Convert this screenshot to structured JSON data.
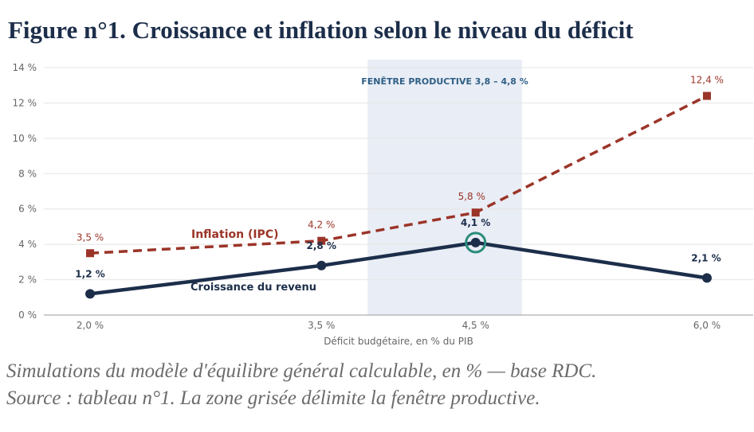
{
  "figure": {
    "title": "Figure n°1. Croissance et inflation selon le niveau du déficit",
    "caption_line1": "Simulations du modèle d'équilibre général calculable, en % — base RDC.",
    "caption_line2": "Source : tableau n°1. La zone grisée délimite la fenêtre productive."
  },
  "chart_data": {
    "type": "line",
    "xlabel": "Déficit budgétaire, en % du PIB",
    "ylabel": "",
    "x": [
      2.0,
      3.5,
      4.5,
      6.0
    ],
    "x_tick_labels": [
      "2,0 %",
      "3,5 %",
      "4,5 %",
      "6,0 %"
    ],
    "xlim": [
      1.7,
      6.3
    ],
    "ylim": [
      0,
      14
    ],
    "y_ticks": [
      0,
      2,
      4,
      6,
      8,
      10,
      12,
      14
    ],
    "y_tick_labels": [
      "0 %",
      "2 %",
      "4 %",
      "6 %",
      "8 %",
      "10 %",
      "12 %",
      "14 %"
    ],
    "grid": true,
    "highlight_band": {
      "x_range": [
        3.8,
        4.8
      ],
      "label": "FENÊTRE PRODUCTIVE  3,8 – 4,8 %",
      "color": "#e9edf5"
    },
    "series": [
      {
        "name": "Inflation (IPC)",
        "values": [
          3.5,
          4.2,
          5.8,
          12.4
        ],
        "value_labels": [
          "3,5 %",
          "4,2 %",
          "5,8 %",
          "12,4 %"
        ],
        "color": "#9b3428",
        "style": "dashed",
        "marker": "square"
      },
      {
        "name": "Croissance du revenu",
        "values": [
          1.2,
          2.8,
          4.1,
          2.1
        ],
        "value_labels": [
          "1,2 %",
          "2,8 %",
          "4,1 %",
          "2,1 %"
        ],
        "color": "#1c2e4a",
        "style": "solid",
        "marker": "circle",
        "highlight_point_index": 2,
        "highlight_color": "#2a8c7a"
      }
    ]
  }
}
